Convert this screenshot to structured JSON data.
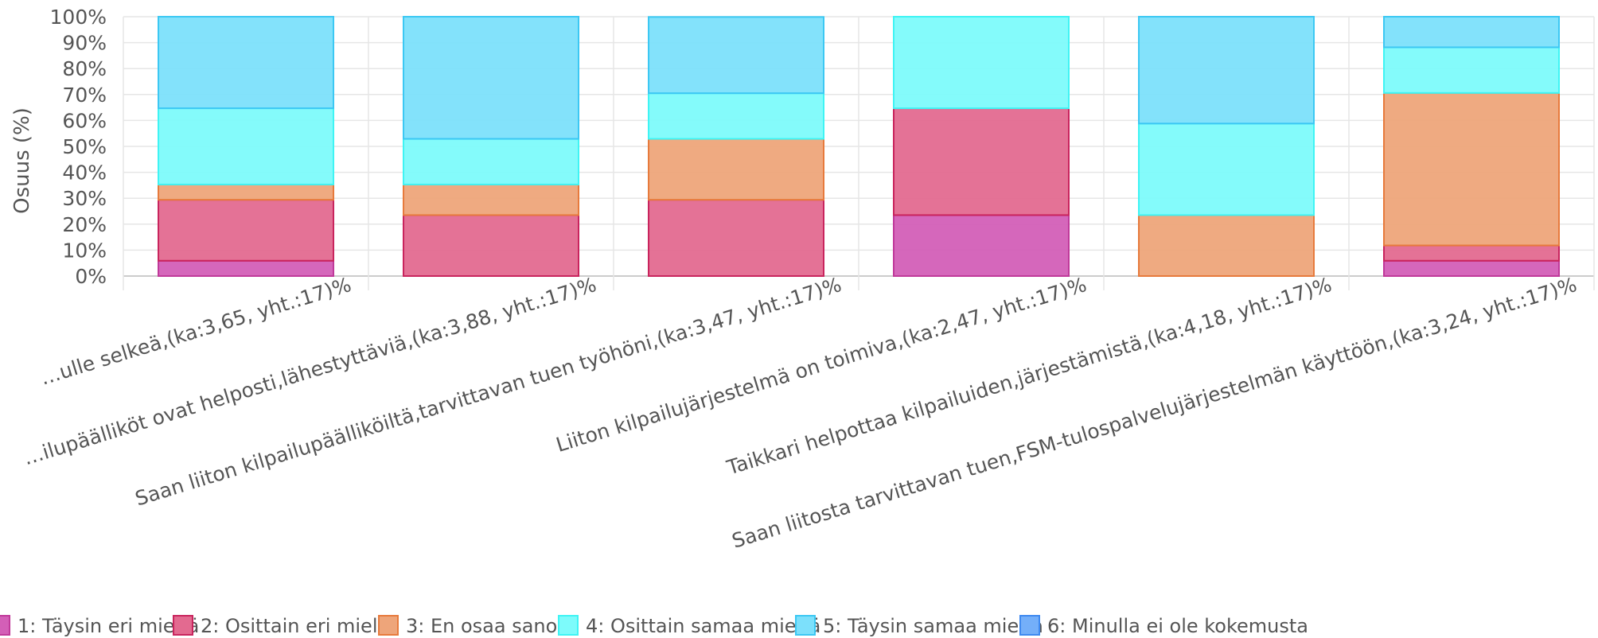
{
  "chart_data": {
    "type": "bar",
    "stacked": true,
    "ylabel": "Osuus (%)",
    "ylim": [
      0,
      100
    ],
    "yticks": [
      "0%",
      "10%",
      "20%",
      "30%",
      "40%",
      "50%",
      "60%",
      "70%",
      "80%",
      "90%",
      "100%"
    ],
    "grid": true,
    "legend_position": "bottom",
    "categories": [
      "…ulle selkeä,(ka:3,65, yht.:17)%",
      "…ilupäälliköt ovat helposti,lähestyttäviä,(ka:3,88, yht.:17)%",
      "Saan liiton kilpailupäälliköiltä,tarvittavan tuen työhöni,(ka:3,47, yht.:17)%",
      "Liiton kilpailujärjestelmä on toimiva,(ka:2,47, yht.:17)%",
      "Taikkari helpottaa kilpailuiden,järjestämistä,(ka:4,18, yht.:17)%",
      "Saan liitosta tarvittavan tuen,FSM-tulospalvelujärjestelmän käyttöön,(ka:3,24, yht.:17)%"
    ],
    "series": [
      {
        "name": "1: Täysin eri mieltä",
        "color": "#d35fb7",
        "values": [
          5.9,
          0,
          0,
          23.5,
          0,
          5.9
        ]
      },
      {
        "name": "2: Osittain eri mieltä",
        "color": "#e36a90",
        "values": [
          23.5,
          23.5,
          29.4,
          41.2,
          0,
          5.9
        ]
      },
      {
        "name": "3: En osaa sanoa",
        "color": "#eea57a",
        "values": [
          5.9,
          11.8,
          23.5,
          0,
          23.5,
          58.8
        ]
      },
      {
        "name": "4: Osittain samaa mieltä",
        "color": "#7dfbfb",
        "values": [
          29.4,
          17.6,
          17.6,
          35.3,
          35.3,
          17.6
        ]
      },
      {
        "name": "5: Täysin samaa mieltä",
        "color": "#7ce0fb",
        "values": [
          35.3,
          47.1,
          29.4,
          0,
          41.2,
          11.8
        ]
      },
      {
        "name": "6: Minulla ei ole kokemusta",
        "color": "#74aff9",
        "values": [
          0,
          0,
          0,
          0,
          0,
          0
        ]
      }
    ],
    "stroke_colors": [
      "#c0399a",
      "#c9245d",
      "#e77a3c",
      "#3ff4f4",
      "#3cc8f3",
      "#3e89f0"
    ]
  }
}
